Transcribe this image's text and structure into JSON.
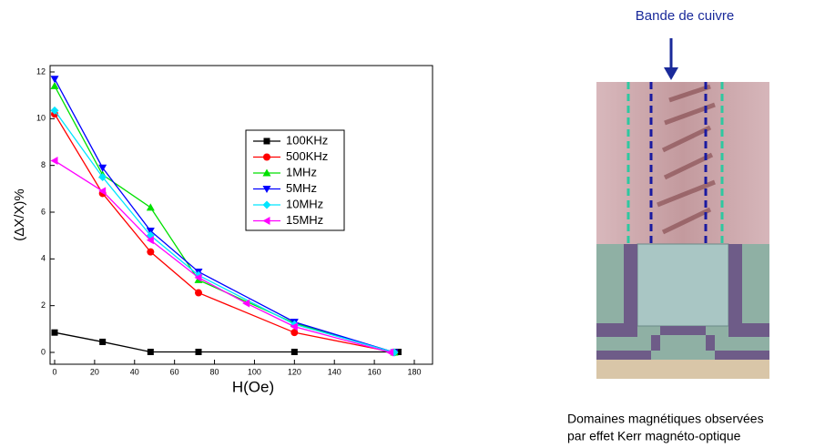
{
  "chart_data": {
    "type": "line",
    "x_label": "H(Oe)",
    "y_label": "(ΔX/X)%",
    "xlim": [
      0,
      180
    ],
    "xticks": [
      0,
      20,
      40,
      60,
      80,
      100,
      120,
      140,
      160,
      180
    ],
    "ylim": [
      0,
      12
    ],
    "yticks": [
      0,
      2,
      4,
      6,
      8,
      10,
      12
    ],
    "series": [
      {
        "name": "100KHz",
        "color": "#000000",
        "marker": "square",
        "x": [
          0,
          24,
          48,
          72,
          120,
          172
        ],
        "values": [
          0.85,
          0.45,
          0.02,
          0.02,
          0.02,
          0.02
        ]
      },
      {
        "name": "500KHz",
        "color": "#ff0000",
        "marker": "circle",
        "x": [
          0,
          24,
          48,
          72,
          120,
          170
        ],
        "values": [
          10.2,
          6.8,
          4.3,
          2.55,
          0.85,
          0.0
        ]
      },
      {
        "name": "1MHz",
        "color": "#00e000",
        "marker": "triangle-up",
        "x": [
          0,
          24,
          48,
          72,
          120,
          170
        ],
        "values": [
          11.4,
          7.6,
          6.2,
          3.1,
          1.25,
          0.0
        ]
      },
      {
        "name": "5MHz",
        "color": "#0000ff",
        "marker": "triangle-down",
        "x": [
          0,
          24,
          48,
          72,
          120,
          170
        ],
        "values": [
          11.7,
          7.9,
          5.2,
          3.45,
          1.3,
          0.0
        ]
      },
      {
        "name": "10MHz",
        "color": "#00e5ff",
        "marker": "diamond",
        "x": [
          0,
          24,
          48,
          72,
          120,
          170
        ],
        "values": [
          10.35,
          7.5,
          5.0,
          3.3,
          1.2,
          0.0
        ]
      },
      {
        "name": "15MHz",
        "color": "#ff00ff",
        "marker": "triangle-left",
        "x": [
          0,
          24,
          48,
          72,
          96,
          120,
          168
        ],
        "values": [
          8.2,
          6.9,
          4.8,
          3.2,
          2.1,
          1.1,
          0.0
        ]
      }
    ],
    "annotations": [
      "Bande de cuivre",
      "Domaines magnétiques observées",
      "par effet Kerr magnéto-optique"
    ]
  }
}
